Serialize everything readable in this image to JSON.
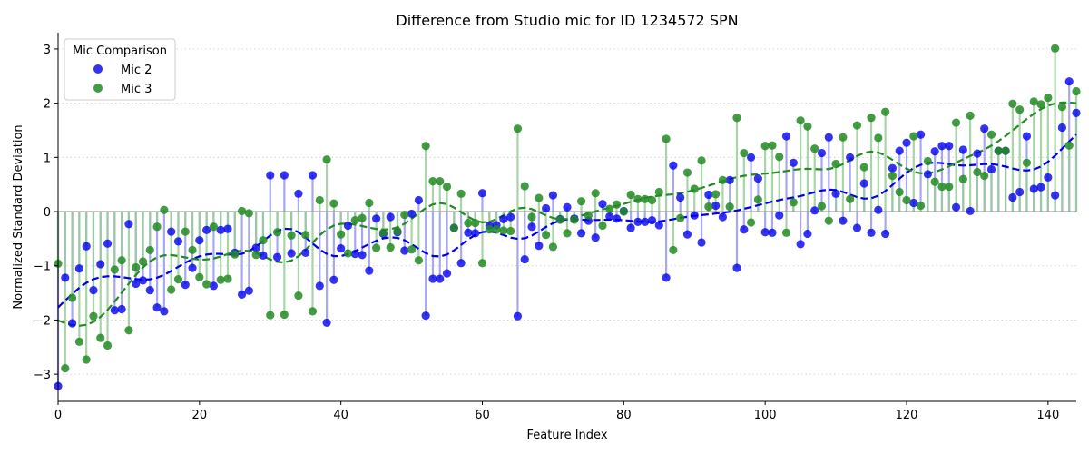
{
  "chart_data": {
    "type": "scatter",
    "title": "Difference from Studio mic for ID 1234572 SPN",
    "xlabel": "Feature Index",
    "ylabel": "Normalized Standard Deviation",
    "xlim": [
      0,
      144
    ],
    "ylim": [
      -3.5,
      3.3
    ],
    "xticks": [
      0,
      20,
      40,
      60,
      80,
      100,
      120,
      140
    ],
    "yticks": [
      -3,
      -2,
      -1,
      0,
      1,
      2,
      3
    ],
    "xtick_labels": [
      "0",
      "20",
      "40",
      "60",
      "80",
      "100",
      "120",
      "140"
    ],
    "ytick_labels": [
      "−3",
      "−2",
      "−1",
      "0",
      "1",
      "2",
      "3"
    ],
    "grid": "horizontal dotted",
    "legend": {
      "title": "Mic Comparison",
      "placement": "top-left"
    },
    "colors": {
      "mic2": "#0000ee",
      "mic3": "#228b22",
      "mic2_stem": "#9999ee",
      "mic3_stem": "#99cc99",
      "grid": "#cccccc"
    },
    "series": [
      {
        "name": "Mic 2",
        "color": "#0000ee",
        "values": [
          -3.22,
          -1.22,
          -2.06,
          -1.05,
          -0.64,
          -1.45,
          -0.97,
          -0.59,
          -1.82,
          -1.8,
          -0.23,
          -1.33,
          -1.27,
          -1.45,
          -1.77,
          -1.84,
          -0.37,
          -0.55,
          -1.35,
          -1.04,
          -0.53,
          -0.34,
          -1.37,
          -0.34,
          -0.32,
          -0.76,
          -1.53,
          -1.46,
          -0.67,
          -0.81,
          0.67,
          -0.84,
          0.67,
          -0.77,
          0.33,
          -0.76,
          0.67,
          -1.37,
          -2.05,
          -1.26,
          -0.68,
          -0.26,
          -0.78,
          -0.8,
          -1.09,
          -0.13,
          -0.41,
          -0.1,
          -0.38,
          -0.72,
          -0.04,
          0.21,
          -1.92,
          -1.24,
          -1.24,
          -1.14,
          -0.3,
          -0.95,
          -0.39,
          -0.4,
          0.34,
          -0.26,
          -0.25,
          -0.14,
          -0.1,
          -1.93,
          -0.88,
          -0.28,
          -0.63,
          0.06,
          0.3,
          -0.14,
          0.08,
          -0.13,
          -0.4,
          -0.17,
          -0.48,
          0.14,
          -0.09,
          -0.13,
          0.01,
          -0.3,
          -0.19,
          -0.19,
          -0.16,
          -0.25,
          -1.22,
          0.85,
          0.26,
          -0.42,
          -0.07,
          -0.57,
          0.31,
          0.11,
          -0.1,
          0.58,
          -1.04,
          -0.33,
          1.0,
          0.61,
          -0.38,
          -0.39,
          -0.07,
          1.39,
          0.9,
          -0.6,
          -0.41,
          0.02,
          1.08,
          1.37,
          0.33,
          -0.17,
          1.0,
          -0.3,
          0.52,
          -0.39,
          0.03,
          -0.41,
          0.8,
          1.12,
          1.27,
          0.16,
          1.42,
          0.69,
          1.11,
          1.21,
          1.21,
          0.08,
          1.14,
          0.01,
          1.07,
          1.53,
          0.78,
          1.12,
          1.12,
          0.26,
          0.36,
          1.39,
          0.42,
          0.45,
          0.63,
          0.3,
          1.55,
          2.4,
          1.82
        ]
      },
      {
        "name": "Mic 3",
        "color": "#228b22",
        "values": [
          -0.96,
          -2.89,
          -1.59,
          -2.4,
          -2.73,
          -1.93,
          -2.33,
          -2.47,
          -1.07,
          -0.9,
          -2.19,
          -1.03,
          -0.92,
          -0.71,
          -0.28,
          0.03,
          -1.44,
          -1.25,
          -0.37,
          -0.71,
          -1.21,
          -1.34,
          -0.28,
          -1.26,
          -1.24,
          -0.79,
          0.01,
          -0.03,
          -0.8,
          -0.53,
          -1.91,
          -0.38,
          -1.9,
          -0.44,
          -1.55,
          -0.43,
          -1.84,
          0.21,
          0.96,
          0.15,
          -0.42,
          -0.77,
          -0.16,
          -0.12,
          0.16,
          -0.67,
          -0.39,
          -0.66,
          -0.36,
          -0.06,
          -0.7,
          -0.9,
          1.21,
          0.56,
          0.56,
          0.46,
          -0.3,
          0.33,
          -0.21,
          -0.21,
          -0.95,
          -0.33,
          -0.33,
          -0.35,
          -0.36,
          1.53,
          0.47,
          -0.1,
          0.25,
          -0.43,
          -0.65,
          -0.15,
          -0.4,
          -0.15,
          0.19,
          -0.07,
          0.34,
          -0.26,
          0.05,
          0.13,
          0.0,
          0.31,
          0.23,
          0.23,
          0.21,
          0.36,
          1.34,
          -0.71,
          -0.12,
          0.72,
          0.42,
          0.94,
          0.09,
          0.32,
          0.58,
          0.09,
          1.73,
          1.08,
          -0.2,
          0.22,
          1.21,
          1.22,
          1.01,
          -0.39,
          0.17,
          1.68,
          1.57,
          1.16,
          0.1,
          -0.17,
          0.88,
          1.37,
          0.23,
          1.59,
          0.82,
          1.73,
          1.36,
          1.84,
          0.66,
          0.36,
          0.21,
          1.39,
          0.11,
          0.93,
          0.55,
          0.46,
          0.46,
          1.64,
          0.6,
          1.77,
          0.73,
          0.66,
          1.42,
          1.12,
          1.12,
          1.99,
          1.88,
          0.9,
          2.03,
          1.98,
          2.1,
          3.01,
          1.93,
          1.22,
          2.22
        ]
      }
    ]
  }
}
